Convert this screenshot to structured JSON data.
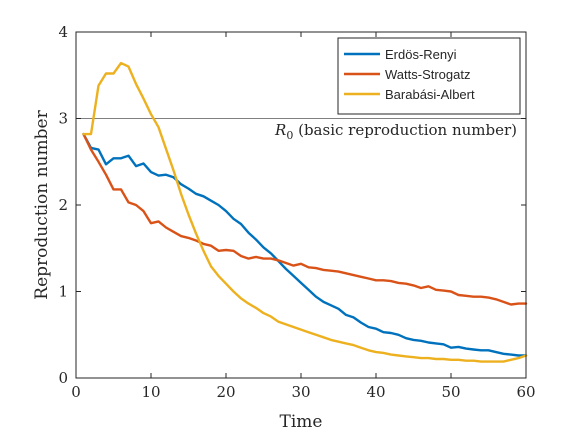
{
  "chart_data": {
    "type": "line",
    "xlabel": "Time",
    "ylabel": "Reproduction number",
    "xlim": [
      0,
      60
    ],
    "ylim": [
      0,
      4
    ],
    "xticks": [
      0,
      10,
      20,
      30,
      40,
      50,
      60
    ],
    "yticks": [
      0,
      1,
      2,
      3,
      4
    ],
    "grid": false,
    "legend_position": "top-right",
    "reference_line": {
      "y": 3,
      "label_symbol": "R",
      "label_subscript": "0",
      "label_rest": "(basic reproduction number)",
      "color": "#808080"
    },
    "series": [
      {
        "name": "Erdös-Renyi",
        "color": "#0072BD",
        "x": [
          1,
          2,
          3,
          4,
          5,
          6,
          7,
          8,
          9,
          10,
          11,
          12,
          13,
          14,
          15,
          16,
          17,
          18,
          19,
          20,
          21,
          22,
          23,
          24,
          25,
          26,
          27,
          28,
          29,
          30,
          31,
          32,
          33,
          34,
          35,
          36,
          37,
          38,
          39,
          40,
          41,
          42,
          43,
          44,
          45,
          46,
          47,
          48,
          49,
          50,
          51,
          52,
          53,
          54,
          55,
          56,
          57,
          58,
          59,
          60
        ],
        "y": [
          2.82,
          2.66,
          2.64,
          2.47,
          2.54,
          2.54,
          2.57,
          2.45,
          2.48,
          2.38,
          2.34,
          2.35,
          2.32,
          2.24,
          2.19,
          2.13,
          2.1,
          2.05,
          2.0,
          1.93,
          1.84,
          1.78,
          1.68,
          1.6,
          1.51,
          1.44,
          1.35,
          1.26,
          1.18,
          1.1,
          1.02,
          0.94,
          0.88,
          0.84,
          0.8,
          0.73,
          0.7,
          0.64,
          0.59,
          0.57,
          0.53,
          0.52,
          0.5,
          0.46,
          0.44,
          0.43,
          0.41,
          0.4,
          0.39,
          0.35,
          0.36,
          0.34,
          0.33,
          0.32,
          0.32,
          0.3,
          0.28,
          0.27,
          0.26,
          0.26
        ]
      },
      {
        "name": "Watts-Strogatz",
        "color": "#D95319",
        "x": [
          1,
          2,
          3,
          4,
          5,
          6,
          7,
          8,
          9,
          10,
          11,
          12,
          13,
          14,
          15,
          16,
          17,
          18,
          19,
          20,
          21,
          22,
          23,
          24,
          25,
          26,
          27,
          28,
          29,
          30,
          31,
          32,
          33,
          34,
          35,
          36,
          37,
          38,
          39,
          40,
          41,
          42,
          43,
          44,
          45,
          46,
          47,
          48,
          49,
          50,
          51,
          52,
          53,
          54,
          55,
          56,
          57,
          58,
          59,
          60
        ],
        "y": [
          2.82,
          2.64,
          2.5,
          2.35,
          2.18,
          2.18,
          2.03,
          2.0,
          1.93,
          1.79,
          1.81,
          1.74,
          1.69,
          1.64,
          1.62,
          1.59,
          1.55,
          1.53,
          1.47,
          1.48,
          1.47,
          1.41,
          1.38,
          1.4,
          1.38,
          1.38,
          1.36,
          1.33,
          1.3,
          1.32,
          1.28,
          1.27,
          1.25,
          1.24,
          1.23,
          1.21,
          1.19,
          1.17,
          1.15,
          1.13,
          1.13,
          1.12,
          1.1,
          1.09,
          1.07,
          1.04,
          1.06,
          1.02,
          1.01,
          1.0,
          0.96,
          0.95,
          0.94,
          0.94,
          0.93,
          0.91,
          0.88,
          0.85,
          0.86,
          0.86
        ]
      },
      {
        "name": "Barabási-Albert",
        "color": "#EDB120",
        "x": [
          1,
          2,
          3,
          4,
          5,
          6,
          7,
          8,
          9,
          10,
          11,
          12,
          13,
          14,
          15,
          16,
          17,
          18,
          19,
          20,
          21,
          22,
          23,
          24,
          25,
          26,
          27,
          28,
          29,
          30,
          31,
          32,
          33,
          34,
          35,
          36,
          37,
          38,
          39,
          40,
          41,
          42,
          43,
          44,
          45,
          46,
          47,
          48,
          49,
          50,
          51,
          52,
          53,
          54,
          55,
          56,
          57,
          58,
          59,
          60
        ],
        "y": [
          2.82,
          2.82,
          3.38,
          3.52,
          3.52,
          3.64,
          3.6,
          3.4,
          3.23,
          3.05,
          2.9,
          2.65,
          2.4,
          2.13,
          1.89,
          1.67,
          1.47,
          1.29,
          1.18,
          1.09,
          1.0,
          0.92,
          0.86,
          0.81,
          0.75,
          0.71,
          0.65,
          0.62,
          0.59,
          0.56,
          0.53,
          0.5,
          0.47,
          0.44,
          0.42,
          0.4,
          0.38,
          0.35,
          0.32,
          0.3,
          0.29,
          0.27,
          0.26,
          0.25,
          0.24,
          0.23,
          0.23,
          0.22,
          0.22,
          0.21,
          0.21,
          0.2,
          0.2,
          0.19,
          0.19,
          0.19,
          0.19,
          0.21,
          0.23,
          0.26
        ]
      }
    ]
  }
}
